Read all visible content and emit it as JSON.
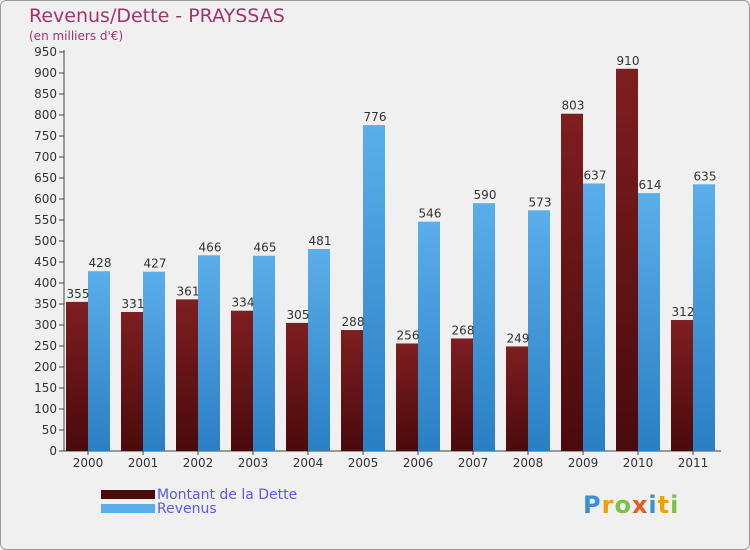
{
  "title": "Revenus/Dette - PRAYSSAS",
  "subtitle": "(en milliers d'€)",
  "legend": {
    "dette_label": "Montant de la Dette",
    "revenus_label": "Revenus"
  },
  "logo": {
    "letters": [
      "P",
      "r",
      "o",
      "x",
      "i",
      "t",
      "i"
    ],
    "colors": [
      "#3a8fd6",
      "#f0a000",
      "#7cc143",
      "#e85a1e",
      "#3a8fd6",
      "#f0a000",
      "#7cc143"
    ]
  },
  "colors": {
    "dette": "#7e1e20",
    "dette_dark": "#4a0a0c",
    "revenus": "#5aaeea",
    "revenus_dark": "#2a7fc4",
    "title": "#a3336b"
  },
  "chart_data": {
    "type": "bar",
    "title": "Revenus/Dette - PRAYSSAS",
    "ylabel": "(en milliers d'€)",
    "xlabel": "",
    "categories": [
      "2000",
      "2001",
      "2002",
      "2003",
      "2004",
      "2005",
      "2006",
      "2007",
      "2008",
      "2009",
      "2010",
      "2011"
    ],
    "series": [
      {
        "name": "Montant de la Dette",
        "values": [
          355,
          331,
          361,
          334,
          305,
          288,
          256,
          268,
          249,
          803,
          910,
          312
        ]
      },
      {
        "name": "Revenus",
        "values": [
          428,
          427,
          466,
          465,
          481,
          776,
          546,
          590,
          573,
          637,
          614,
          635
        ]
      }
    ],
    "ylim": [
      0,
      950
    ],
    "ytick_step": 50,
    "grid": false,
    "legend": "bottom-left"
  }
}
